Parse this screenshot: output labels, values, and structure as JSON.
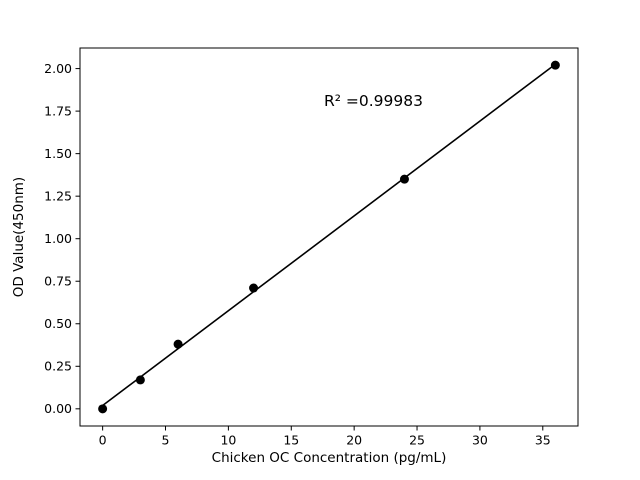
{
  "figure": {
    "background": "#ffffff"
  },
  "chart_data": {
    "type": "scatter",
    "x": [
      0,
      3,
      6,
      12,
      24,
      36
    ],
    "y": [
      0.0,
      0.17,
      0.38,
      0.71,
      1.35,
      2.02
    ],
    "fit_line": true,
    "annotation": {
      "text": "R² =0.99983",
      "x": 17.6,
      "y": 1.78
    },
    "xlabel": "Chicken OC Concentration (pg/mL)",
    "ylabel": "OD Value(450nm)",
    "xlim": [
      -1.8,
      37.8
    ],
    "ylim": [
      -0.101,
      2.121
    ],
    "xticks": {
      "values": [
        0,
        5,
        10,
        15,
        20,
        25,
        30,
        35
      ],
      "labels": [
        "0",
        "5",
        "10",
        "15",
        "20",
        "25",
        "30",
        "35"
      ]
    },
    "yticks": {
      "values": [
        0.0,
        0.25,
        0.5,
        0.75,
        1.0,
        1.25,
        1.5,
        1.75,
        2.0
      ],
      "labels": [
        "0.00",
        "0.25",
        "0.50",
        "0.75",
        "1.00",
        "1.25",
        "1.50",
        "1.75",
        "2.00"
      ]
    },
    "marker_color": "#000000",
    "line_color": "#000000",
    "axis_color": "#000000",
    "grid": false,
    "legend": null
  }
}
